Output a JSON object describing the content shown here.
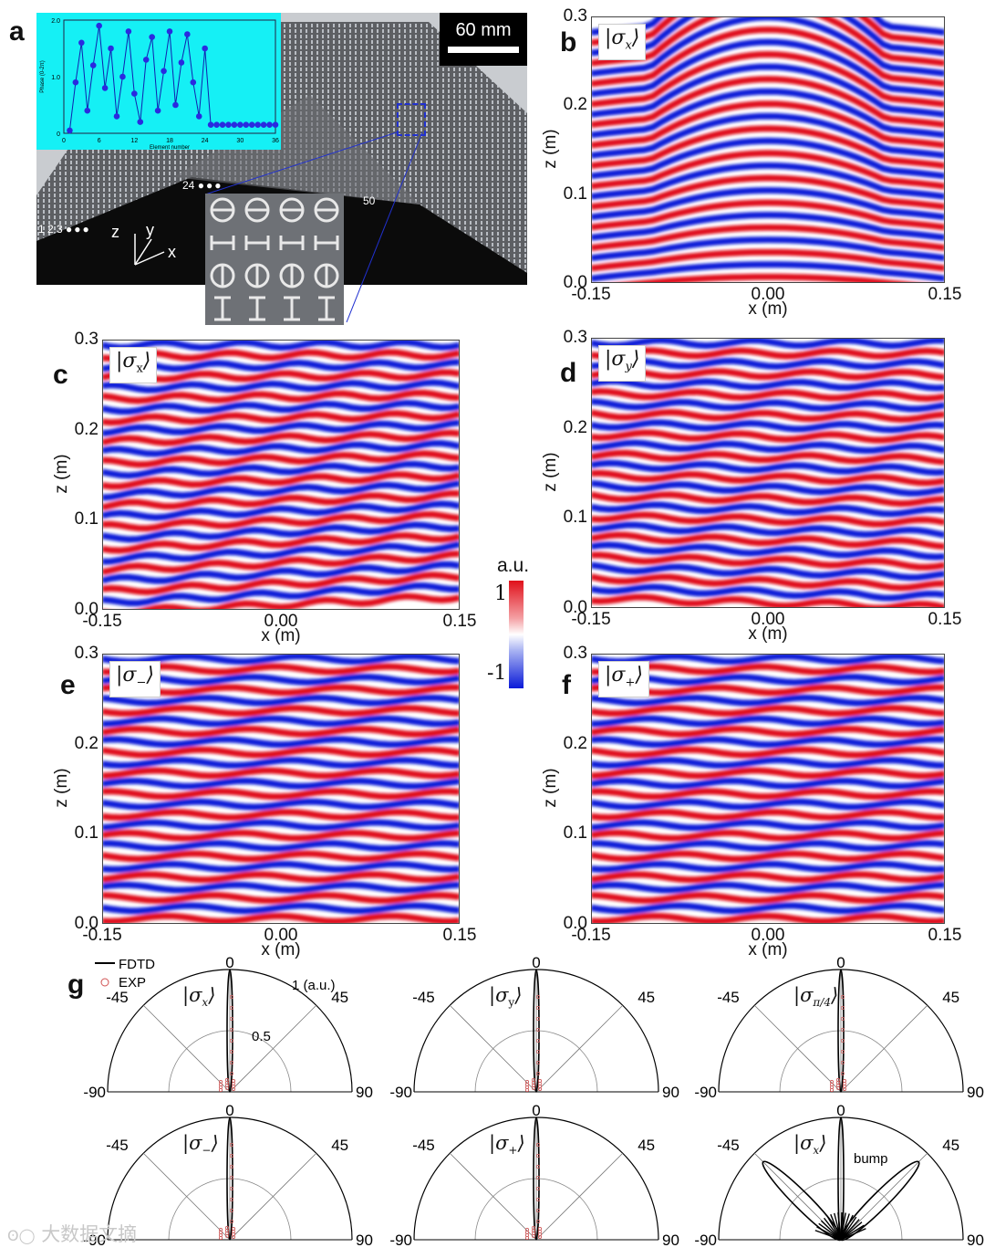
{
  "figure": {
    "panel_a": {
      "letter": "a",
      "scale_bar": "60 mm",
      "inset": {
        "ylabel": "Phase (0-2π)",
        "xlabel": "Element number",
        "yticks": [
          "0",
          "1.0",
          "2.0"
        ],
        "xticks": [
          "0",
          "6",
          "12",
          "18",
          "24",
          "30",
          "36"
        ]
      },
      "element_labels": [
        "1 2 3",
        "24",
        "50"
      ],
      "axes": {
        "x": "x",
        "y": "y",
        "z": "z"
      }
    },
    "field_panels": [
      {
        "id": "b",
        "letter": "b",
        "state": "σ",
        "sub": "x",
        "italic_sub": true
      },
      {
        "id": "c",
        "letter": "c",
        "state": "σ",
        "sub": "x",
        "italic_sub": false
      },
      {
        "id": "d",
        "letter": "d",
        "state": "σ",
        "sub": "y",
        "italic_sub": true
      },
      {
        "id": "e",
        "letter": "e",
        "state": "σ",
        "sub": "−",
        "italic_sub": false
      },
      {
        "id": "f",
        "letter": "f",
        "state": "σ",
        "sub": "+",
        "italic_sub": false
      }
    ],
    "field_axes": {
      "xticks": [
        "-0.15",
        "0.00",
        "0.15"
      ],
      "zticks": [
        "0.0",
        "0.1",
        "0.2",
        "0.3"
      ],
      "xlabel": "x (m)",
      "zlabel": "z (m)"
    },
    "colorbar": {
      "unit": "a.u.",
      "max": "1",
      "min": "-1"
    },
    "panel_g": {
      "letter": "g",
      "legend": [
        "FDTD",
        "EXP"
      ],
      "angle_labels": [
        "0",
        "-45",
        "45",
        "-90",
        "90"
      ],
      "radius_labels": [
        "1 (a.u.)",
        "0.5"
      ],
      "annotation": "bump",
      "plots": [
        {
          "sub": "x",
          "italic_sub": true
        },
        {
          "sub": "y",
          "italic_sub": false
        },
        {
          "sub": "π/4",
          "italic_sub": true
        },
        {
          "sub": "−",
          "italic_sub": false
        },
        {
          "sub": "+",
          "italic_sub": false
        },
        {
          "sub": "x",
          "italic_sub": true
        }
      ]
    },
    "watermark": "大数据文摘"
  },
  "chart_data": [
    {
      "type": "heatmap",
      "panel": "b",
      "xlabel": "x (m)",
      "ylabel": "z (m)",
      "xlim": [
        -0.15,
        0.15
      ],
      "ylim": [
        0,
        0.3
      ],
      "xticks": [
        -0.15,
        0.0,
        0.15
      ],
      "yticks": [
        0.0,
        0.1,
        0.2,
        0.3
      ],
      "colorscale": [
        "#0a1ad8",
        "#ffffff",
        "#e0101a"
      ],
      "clim": [
        -1,
        1
      ]
    },
    {
      "type": "heatmap",
      "panel": "c",
      "xlabel": "x (m)",
      "ylabel": "z (m)",
      "xlim": [
        -0.15,
        0.15
      ],
      "ylim": [
        0,
        0.3
      ],
      "xticks": [
        -0.15,
        0.0,
        0.15
      ],
      "yticks": [
        0.0,
        0.1,
        0.2,
        0.3
      ],
      "clim": [
        -1,
        1
      ]
    },
    {
      "type": "heatmap",
      "panel": "d",
      "xlabel": "x (m)",
      "ylabel": "z (m)",
      "xlim": [
        -0.15,
        0.15
      ],
      "ylim": [
        0,
        0.3
      ],
      "xticks": [
        -0.15,
        0.0,
        0.15
      ],
      "yticks": [
        0.0,
        0.1,
        0.2,
        0.3
      ],
      "clim": [
        -1,
        1
      ]
    },
    {
      "type": "heatmap",
      "panel": "e",
      "xlabel": "x (m)",
      "ylabel": "z (m)",
      "xlim": [
        -0.15,
        0.15
      ],
      "ylim": [
        0,
        0.3
      ],
      "xticks": [
        -0.15,
        0.0,
        0.15
      ],
      "yticks": [
        0.0,
        0.1,
        0.2,
        0.3
      ],
      "clim": [
        -1,
        1
      ]
    },
    {
      "type": "heatmap",
      "panel": "f",
      "xlabel": "x (m)",
      "ylabel": "z (m)",
      "xlim": [
        -0.15,
        0.15
      ],
      "ylim": [
        0,
        0.3
      ],
      "xticks": [
        -0.15,
        0.0,
        0.15
      ],
      "yticks": [
        0.0,
        0.1,
        0.2,
        0.3
      ],
      "clim": [
        -1,
        1
      ]
    },
    {
      "type": "line",
      "panel": "a-inset",
      "xlabel": "Element number",
      "ylabel": "Phase (0-2π)",
      "xlim": [
        0,
        36
      ],
      "ylim": [
        0,
        2.0
      ],
      "x": [
        1,
        2,
        3,
        4,
        5,
        6,
        7,
        8,
        9,
        10,
        11,
        12,
        13,
        14,
        15,
        16,
        17,
        18,
        19,
        20,
        21,
        22,
        23,
        24,
        25,
        26,
        27,
        28,
        29,
        30,
        31,
        32,
        33,
        34,
        35,
        36
      ],
      "y": [
        0.05,
        0.9,
        1.6,
        0.4,
        1.2,
        1.9,
        0.8,
        1.5,
        0.3,
        1.0,
        1.8,
        0.7,
        0.2,
        1.3,
        1.7,
        0.4,
        1.1,
        1.8,
        0.5,
        1.25,
        1.75,
        0.9,
        0.3,
        1.5,
        0.15,
        0.15,
        0.15,
        0.15,
        0.15,
        0.15,
        0.15,
        0.15,
        0.15,
        0.15,
        0.15,
        0.15
      ]
    }
  ]
}
